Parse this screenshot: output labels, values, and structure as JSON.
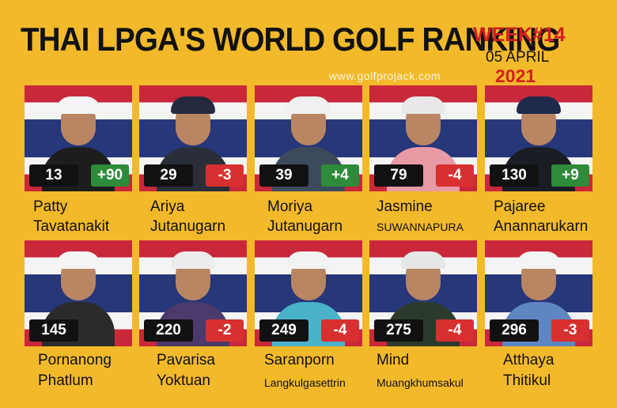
{
  "header": {
    "title": "THAI LPGA'S WORLD GOLF RANKING",
    "week": "WEEK#14",
    "date": "05 APRIL",
    "year": "2021",
    "website": "www.golfprojack.com"
  },
  "colors": {
    "background": "#f2b92a",
    "positive": "#2e8b3a",
    "negative": "#d83030",
    "rank_box": "#111111"
  },
  "players": [
    {
      "rank": "13",
      "change": "+90",
      "direction": "up",
      "first": "Patty",
      "last": "Tavatanakit"
    },
    {
      "rank": "29",
      "change": "-3",
      "direction": "down",
      "first": "Ariya",
      "last": "Jutanugarn"
    },
    {
      "rank": "39",
      "change": "+4",
      "direction": "up",
      "first": "Moriya",
      "last": "Jutanugarn"
    },
    {
      "rank": "79",
      "change": "-4",
      "direction": "down",
      "first": "Jasmine",
      "last": "SUWANNAPURA"
    },
    {
      "rank": "130",
      "change": "+9",
      "direction": "up",
      "first": "Pajaree",
      "last": "Anannarukarn"
    },
    {
      "rank": "145",
      "change": "",
      "direction": "none",
      "first": "Pornanong",
      "last": "Phatlum"
    },
    {
      "rank": "220",
      "change": "-2",
      "direction": "down",
      "first": "Pavarisa",
      "last": "Yoktuan"
    },
    {
      "rank": "249",
      "change": "-4",
      "direction": "down",
      "first": "Saranporn",
      "last": "Langkulgasettrin"
    },
    {
      "rank": "275",
      "change": "-4",
      "direction": "down",
      "first": "Mind",
      "last": "Muangkhumsakul"
    },
    {
      "rank": "296",
      "change": "-3",
      "direction": "down",
      "first": "Atthaya",
      "last": "Thitikul"
    }
  ]
}
